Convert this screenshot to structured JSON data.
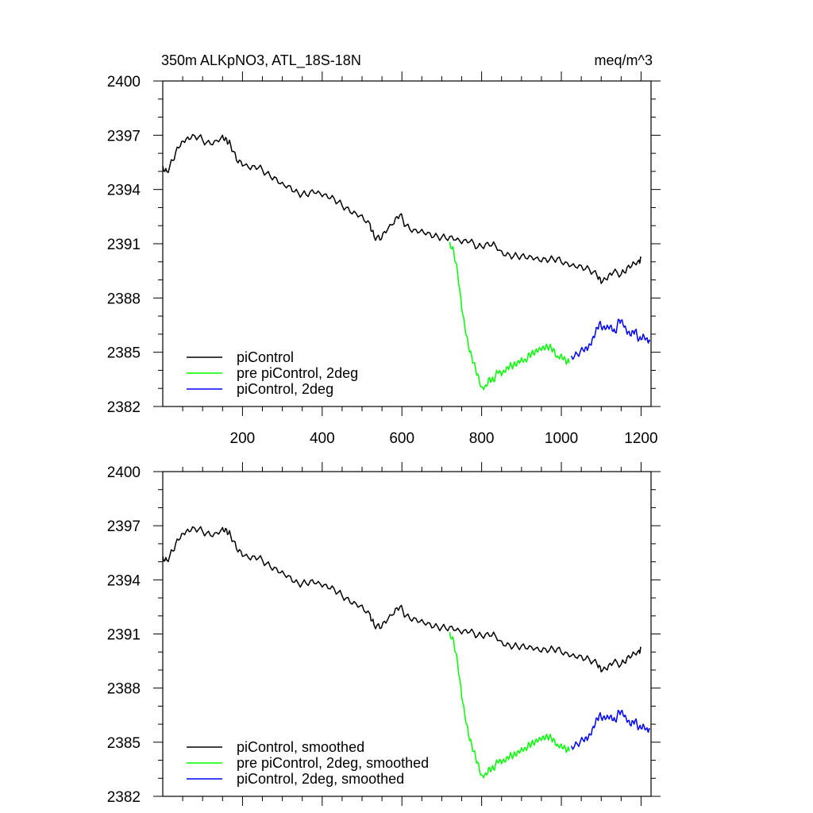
{
  "header": {
    "title": "350m ALKpNO3, ATL_18S-18N",
    "units": "meq/m^3"
  },
  "chart_data": [
    {
      "type": "line",
      "title": "350m ALKpNO3, ATL_18S-18N",
      "units_label": "meq/m^3",
      "xlim": [
        0,
        1225
      ],
      "ylim": [
        2382,
        2400
      ],
      "x_ticks": [
        200,
        400,
        600,
        800,
        1000,
        1200
      ],
      "x_tick_labels": [
        "200",
        "400",
        "600",
        "800",
        "1000",
        "1200"
      ],
      "y_ticks": [
        2382,
        2385,
        2388,
        2391,
        2394,
        2397,
        2400
      ],
      "y_tick_labels": [
        "2382",
        "2385",
        "2388",
        "2391",
        "2394",
        "2397",
        "2400"
      ],
      "grid": false,
      "legend_position": "bottom-left",
      "series": [
        {
          "name": "piControl",
          "color": "#000000",
          "x": [
            0,
            10,
            25,
            40,
            55,
            70,
            90,
            110,
            130,
            150,
            160,
            170,
            185,
            200,
            220,
            240,
            260,
            280,
            300,
            320,
            340,
            360,
            380,
            400,
            420,
            440,
            460,
            480,
            500,
            520,
            530,
            545,
            560,
            580,
            595,
            610,
            630,
            650,
            670,
            690,
            710,
            730,
            750,
            770,
            790,
            810,
            830,
            850,
            870,
            890,
            910,
            930,
            950,
            970,
            990,
            1010,
            1030,
            1050,
            1070,
            1090,
            1100,
            1115,
            1130,
            1150,
            1165,
            1180,
            1195,
            1200
          ],
          "values": [
            2395.3,
            2395.0,
            2395.6,
            2396.3,
            2396.6,
            2396.8,
            2396.9,
            2396.6,
            2396.7,
            2397.0,
            2396.8,
            2396.5,
            2395.6,
            2395.3,
            2395.1,
            2395.2,
            2394.9,
            2394.7,
            2394.4,
            2394.2,
            2393.8,
            2393.7,
            2393.8,
            2393.6,
            2393.5,
            2393.3,
            2393.0,
            2392.8,
            2392.6,
            2392.1,
            2391.4,
            2391.2,
            2391.6,
            2392.1,
            2392.6,
            2392.0,
            2391.8,
            2391.8,
            2391.6,
            2391.4,
            2391.3,
            2391.2,
            2391.0,
            2391.1,
            2390.8,
            2391.0,
            2391.1,
            2390.6,
            2390.4,
            2390.3,
            2390.2,
            2390.1,
            2390.0,
            2390.1,
            2390.2,
            2390.0,
            2389.9,
            2389.8,
            2389.6,
            2389.2,
            2388.8,
            2389.0,
            2389.4,
            2389.3,
            2389.7,
            2390.0,
            2390.1,
            2390.2
          ]
        },
        {
          "name": "pre piControl, 2deg",
          "color": "#00ff00",
          "x": [
            720,
            730,
            740,
            750,
            760,
            770,
            780,
            790,
            800,
            810,
            820,
            830,
            840,
            850,
            860,
            870,
            880,
            890,
            900,
            910,
            920,
            930,
            940,
            950,
            960,
            970,
            980,
            990,
            1000,
            1010,
            1020
          ],
          "values": [
            2391.1,
            2390.6,
            2389.3,
            2387.4,
            2386.0,
            2385.0,
            2384.4,
            2383.8,
            2383.1,
            2383.2,
            2383.6,
            2383.4,
            2383.9,
            2383.7,
            2383.9,
            2384.2,
            2384.3,
            2384.5,
            2384.7,
            2384.6,
            2384.9,
            2384.9,
            2385.0,
            2385.1,
            2385.2,
            2385.3,
            2385.2,
            2384.8,
            2384.9,
            2384.6,
            2384.4
          ]
        },
        {
          "name": "piControl, 2deg",
          "color": "#0000ff",
          "x": [
            1025,
            1040,
            1055,
            1065,
            1075,
            1085,
            1095,
            1105,
            1115,
            1125,
            1135,
            1145,
            1155,
            1165,
            1175,
            1185,
            1195,
            1205,
            1215,
            1222
          ],
          "values": [
            2384.8,
            2384.9,
            2385.1,
            2385.1,
            2385.4,
            2386.0,
            2386.6,
            2386.4,
            2386.5,
            2386.5,
            2386.1,
            2386.8,
            2386.5,
            2386.0,
            2385.9,
            2386.2,
            2385.7,
            2386.0,
            2385.8,
            2385.6
          ]
        }
      ]
    },
    {
      "type": "line",
      "xlim": [
        0,
        1225
      ],
      "ylim": [
        2382,
        2400
      ],
      "y_ticks": [
        2382,
        2385,
        2388,
        2391,
        2394,
        2397,
        2400
      ],
      "y_tick_labels": [
        "2382",
        "2385",
        "2388",
        "2391",
        "2394",
        "2397",
        "2400"
      ],
      "grid": false,
      "legend_position": "bottom-left",
      "series": [
        {
          "name": "piControl, smoothed",
          "color": "#000000",
          "x": [
            0,
            10,
            25,
            40,
            55,
            70,
            90,
            110,
            130,
            150,
            160,
            170,
            185,
            200,
            220,
            240,
            260,
            280,
            300,
            320,
            340,
            360,
            380,
            400,
            420,
            440,
            460,
            480,
            500,
            520,
            530,
            545,
            560,
            580,
            595,
            610,
            630,
            650,
            670,
            690,
            710,
            730,
            750,
            770,
            790,
            810,
            830,
            850,
            870,
            890,
            910,
            930,
            950,
            970,
            990,
            1010,
            1030,
            1050,
            1070,
            1090,
            1100,
            1115,
            1130,
            1150,
            1165,
            1180,
            1195,
            1200
          ],
          "values": [
            2395.3,
            2395.1,
            2395.6,
            2396.2,
            2396.5,
            2396.7,
            2396.8,
            2396.6,
            2396.6,
            2396.9,
            2396.8,
            2396.5,
            2395.7,
            2395.3,
            2395.1,
            2395.2,
            2394.9,
            2394.7,
            2394.5,
            2394.2,
            2393.8,
            2393.8,
            2393.8,
            2393.6,
            2393.5,
            2393.3,
            2393.0,
            2392.8,
            2392.6,
            2392.1,
            2391.5,
            2391.3,
            2391.6,
            2392.1,
            2392.5,
            2392.0,
            2391.9,
            2391.8,
            2391.6,
            2391.4,
            2391.3,
            2391.2,
            2391.0,
            2391.1,
            2390.9,
            2391.0,
            2391.1,
            2390.6,
            2390.4,
            2390.3,
            2390.2,
            2390.1,
            2390.0,
            2390.1,
            2390.2,
            2390.0,
            2389.9,
            2389.8,
            2389.6,
            2389.3,
            2388.9,
            2389.0,
            2389.4,
            2389.3,
            2389.7,
            2390.0,
            2390.1,
            2390.2
          ]
        },
        {
          "name": "pre piControl, 2deg, smoothed",
          "color": "#00ff00",
          "x": [
            720,
            730,
            740,
            750,
            760,
            770,
            780,
            790,
            800,
            810,
            820,
            830,
            840,
            850,
            860,
            870,
            880,
            890,
            900,
            910,
            920,
            930,
            940,
            950,
            960,
            970,
            980,
            990,
            1000,
            1010,
            1020
          ],
          "values": [
            2391.1,
            2390.6,
            2389.3,
            2387.5,
            2386.1,
            2385.1,
            2384.5,
            2383.9,
            2383.2,
            2383.3,
            2383.6,
            2383.5,
            2383.9,
            2383.8,
            2383.9,
            2384.2,
            2384.3,
            2384.5,
            2384.7,
            2384.7,
            2384.9,
            2384.9,
            2385.0,
            2385.1,
            2385.2,
            2385.3,
            2385.2,
            2384.9,
            2384.9,
            2384.7,
            2384.5
          ]
        },
        {
          "name": "piControl, 2deg, smoothed",
          "color": "#0000ff",
          "x": [
            1025,
            1040,
            1055,
            1065,
            1075,
            1085,
            1095,
            1105,
            1115,
            1125,
            1135,
            1145,
            1155,
            1165,
            1175,
            1185,
            1195,
            1205,
            1215,
            1222
          ],
          "values": [
            2384.8,
            2384.9,
            2385.1,
            2385.1,
            2385.4,
            2386.0,
            2386.5,
            2386.4,
            2386.5,
            2386.5,
            2386.2,
            2386.7,
            2386.5,
            2386.1,
            2385.9,
            2386.2,
            2385.8,
            2386.0,
            2385.8,
            2385.7
          ]
        }
      ]
    }
  ]
}
